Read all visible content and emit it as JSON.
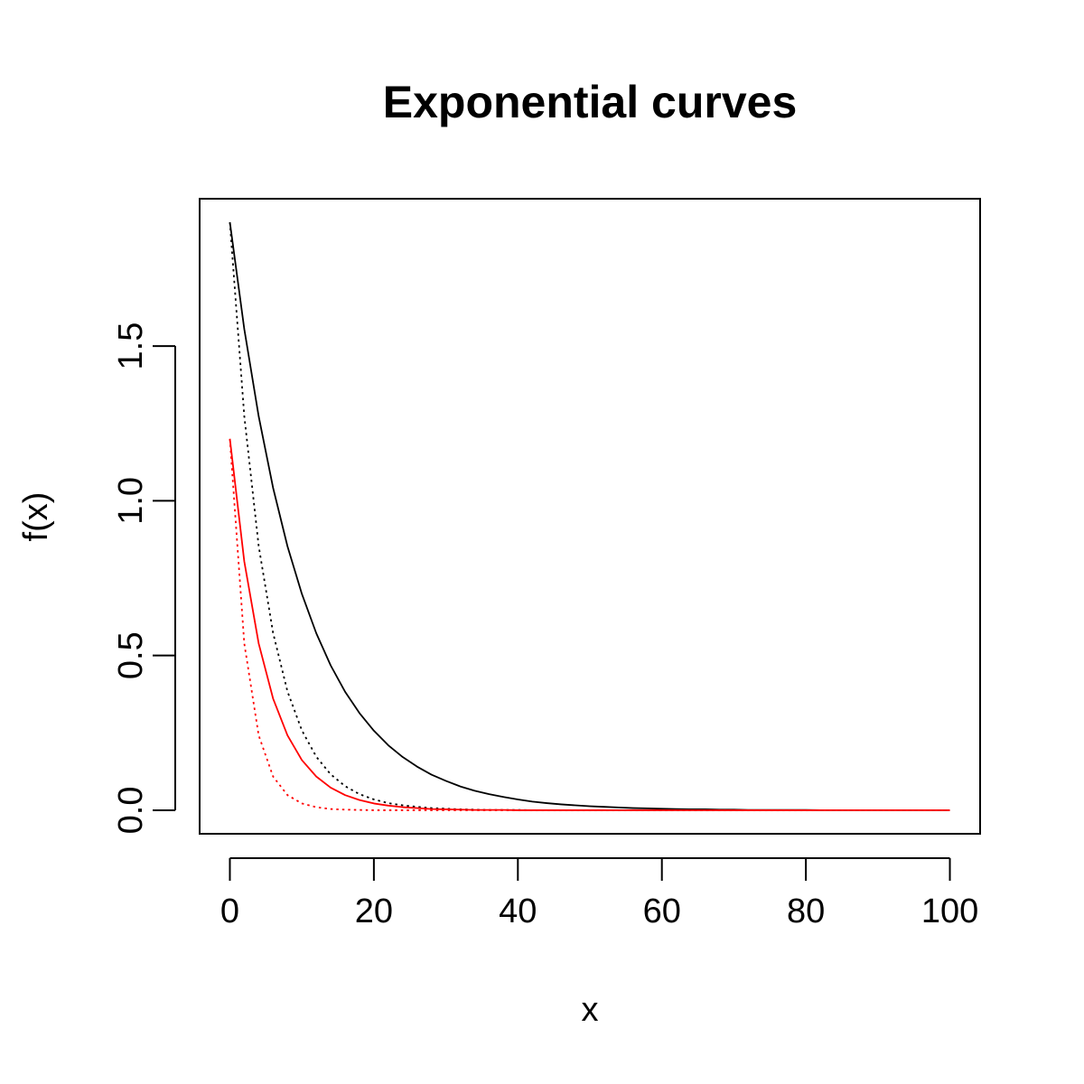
{
  "chart_data": {
    "type": "line",
    "title": "Exponential curves",
    "xlabel": "x",
    "ylabel": "f(x)",
    "xlim": [
      -4.2,
      104.2
    ],
    "ylim": [
      -0.076,
      1.976
    ],
    "x_ticks": [
      0,
      20,
      40,
      60,
      80,
      100
    ],
    "x_tick_labels": [
      "0",
      "20",
      "40",
      "60",
      "80",
      "100"
    ],
    "y_ticks": [
      0.0,
      0.5,
      1.0,
      1.5
    ],
    "y_tick_labels": [
      "0.0",
      "0.5",
      "1.0",
      "1.5"
    ],
    "grid": false,
    "legend": "none",
    "x": [
      0,
      2,
      4,
      6,
      8,
      10,
      12,
      14,
      16,
      18,
      20,
      22,
      24,
      26,
      28,
      30,
      32,
      34,
      36,
      38,
      40,
      42,
      44,
      46,
      48,
      50,
      52,
      54,
      56,
      58,
      60,
      62,
      64,
      66,
      68,
      70,
      72,
      74,
      76,
      78,
      80,
      82,
      84,
      86,
      88,
      90,
      92,
      94,
      96,
      98,
      100
    ],
    "series": [
      {
        "color": "#000000",
        "line_style": "solid",
        "values": [
          1.9,
          1.555,
          1.273,
          1.042,
          0.853,
          0.699,
          0.572,
          0.468,
          0.383,
          0.314,
          0.257,
          0.21,
          0.172,
          0.141,
          0.115,
          0.095,
          0.077,
          0.063,
          0.052,
          0.043,
          0.035,
          0.028,
          0.023,
          0.019,
          0.016,
          0.013,
          0.011,
          0.009,
          0.007,
          0.006,
          0.005,
          0.004,
          0.003,
          0.003,
          0.002,
          0.002,
          0.001,
          0.001,
          0.001,
          0.001,
          0.001,
          0.0,
          0.0,
          0.0,
          0.0,
          0.0,
          0.0,
          0.0,
          0.0,
          0.0,
          0.0
        ]
      },
      {
        "color": "#000000",
        "line_style": "dotted",
        "values": [
          1.9,
          1.274,
          0.854,
          0.573,
          0.384,
          0.258,
          0.173,
          0.116,
          0.078,
          0.052,
          0.035,
          0.023,
          0.016,
          0.011,
          0.007,
          0.005,
          0.003,
          0.002,
          0.001,
          0.001,
          0.001,
          0.0,
          0.0,
          0.0,
          0.0,
          0.0,
          0.0,
          0.0,
          0.0,
          0.0,
          0.0,
          0.0,
          0.0,
          0.0,
          0.0,
          0.0,
          0.0,
          0.0,
          0.0,
          0.0,
          0.0,
          0.0,
          0.0,
          0.0,
          0.0,
          0.0,
          0.0,
          0.0,
          0.0,
          0.0,
          0.0
        ]
      },
      {
        "color": "#ff0000",
        "line_style": "solid",
        "values": [
          1.2,
          0.804,
          0.539,
          0.361,
          0.242,
          0.162,
          0.109,
          0.073,
          0.049,
          0.033,
          0.022,
          0.015,
          0.01,
          0.007,
          0.004,
          0.003,
          0.002,
          0.001,
          0.001,
          0.001,
          0.0,
          0.0,
          0.0,
          0.0,
          0.0,
          0.0,
          0.0,
          0.0,
          0.0,
          0.0,
          0.0,
          0.0,
          0.0,
          0.0,
          0.0,
          0.0,
          0.0,
          0.0,
          0.0,
          0.0,
          0.0,
          0.0,
          0.0,
          0.0,
          0.0,
          0.0,
          0.0,
          0.0,
          0.0,
          0.0,
          0.0
        ]
      },
      {
        "color": "#ff0000",
        "line_style": "dotted",
        "values": [
          1.2,
          0.539,
          0.242,
          0.109,
          0.049,
          0.022,
          0.01,
          0.004,
          0.002,
          0.001,
          0.0,
          0.0,
          0.0,
          0.0,
          0.0,
          0.0,
          0.0,
          0.0,
          0.0,
          0.0,
          0.0,
          0.0,
          0.0,
          0.0,
          0.0,
          0.0,
          0.0,
          0.0,
          0.0,
          0.0,
          0.0,
          0.0,
          0.0,
          0.0,
          0.0,
          0.0,
          0.0,
          0.0,
          0.0,
          0.0,
          0.0,
          0.0,
          0.0,
          0.0,
          0.0,
          0.0,
          0.0,
          0.0,
          0.0,
          0.0,
          0.0
        ]
      }
    ]
  }
}
